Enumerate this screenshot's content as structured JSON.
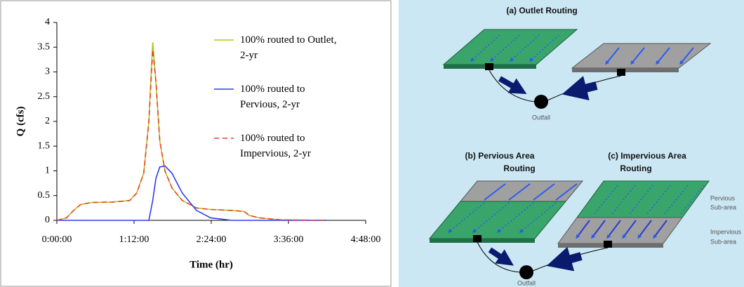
{
  "chart_data": {
    "type": "line",
    "x_label": "Time (hr)",
    "y_label": "Q (cfs)",
    "x": [
      0,
      0.15,
      0.26,
      0.37,
      0.53,
      0.86,
      1.13,
      1.24,
      1.35,
      1.43,
      1.49,
      1.54,
      1.6,
      1.68,
      1.79,
      1.95,
      2.17,
      2.39,
      2.72,
      2.91,
      2.99,
      3.15,
      3.48,
      4.19
    ],
    "series": [
      {
        "name": "100% routed to Outlet, 2-yr",
        "color": "#a8c814",
        "dash": "solid",
        "values": [
          0,
          0.05,
          0.2,
          0.32,
          0.36,
          0.37,
          0.4,
          0.55,
          0.95,
          2.0,
          3.6,
          2.8,
          1.6,
          1.0,
          0.65,
          0.4,
          0.25,
          0.22,
          0.2,
          0.18,
          0.1,
          0.05,
          0.01,
          0
        ]
      },
      {
        "name": "100% routed to Pervious, 2-yr",
        "color": "#2e3cf0",
        "dash": "solid",
        "values": [
          0,
          0,
          0,
          0,
          0,
          0,
          0,
          0,
          0,
          0,
          0.4,
          0.85,
          1.08,
          1.1,
          0.95,
          0.55,
          0.2,
          0.05,
          0,
          0,
          0,
          0,
          0,
          0
        ]
      },
      {
        "name": "100% routed to Impervious, 2-yr",
        "color": "#f03c2c",
        "dash": "dashed",
        "values": [
          0,
          0.05,
          0.2,
          0.32,
          0.36,
          0.37,
          0.4,
          0.55,
          0.95,
          2.0,
          3.45,
          2.8,
          1.6,
          1.0,
          0.65,
          0.4,
          0.25,
          0.22,
          0.2,
          0.18,
          0.1,
          0.05,
          0.01,
          0
        ]
      }
    ],
    "xlim": [
      0,
      4.8
    ],
    "xticks": [
      {
        "value": 0,
        "label": "0:00:00"
      },
      {
        "value": 1.2,
        "label": "1:12:00"
      },
      {
        "value": 2.4,
        "label": "2:24:00"
      },
      {
        "value": 3.6,
        "label": "3:36:00"
      },
      {
        "value": 4.8,
        "label": "4:48:00"
      }
    ],
    "ylim": [
      0,
      4
    ],
    "yticks": [
      0,
      0.5,
      1,
      1.5,
      2,
      2.5,
      3,
      3.5,
      4
    ],
    "grid": false,
    "legend": "upper right"
  },
  "diagram": {
    "panel_a": {
      "title": "(a) Outlet Routing",
      "outfall": "Outfall"
    },
    "panel_b": {
      "title": [
        "(b) Pervious Area",
        "Routing"
      ]
    },
    "panel_c": {
      "title": [
        "(c) Impervious Area",
        "Routing"
      ]
    },
    "sub_areas": {
      "pervious": [
        "Pervious",
        "Sub-area"
      ],
      "impervious": [
        "Impervious",
        "Sub-area"
      ]
    },
    "outfall_bc": "Outfall"
  }
}
